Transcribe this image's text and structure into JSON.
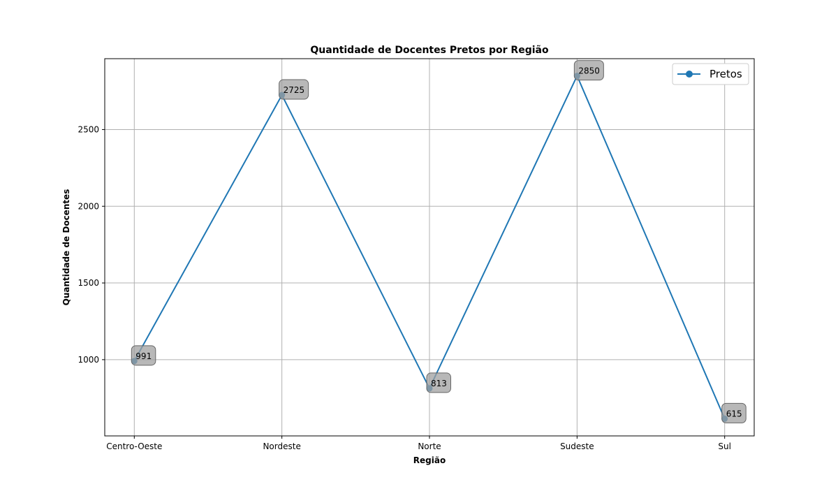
{
  "chart_data": {
    "type": "line",
    "title": "Quantidade de Docentes Pretos por Região",
    "xlabel": "Região",
    "ylabel": "Quantidade de Docentes",
    "categories": [
      "Centro-Oeste",
      "Nordeste",
      "Norte",
      "Sudeste",
      "Sul"
    ],
    "series": [
      {
        "name": "Pretos",
        "values": [
          991,
          2725,
          813,
          2850,
          615
        ],
        "color": "#1f77b4",
        "marker": "circle"
      }
    ],
    "ylim": [
      503,
      2962
    ],
    "yticks": [
      1000,
      1500,
      2000,
      2500
    ],
    "grid": true,
    "legend": "top-right",
    "data_labels": true
  }
}
